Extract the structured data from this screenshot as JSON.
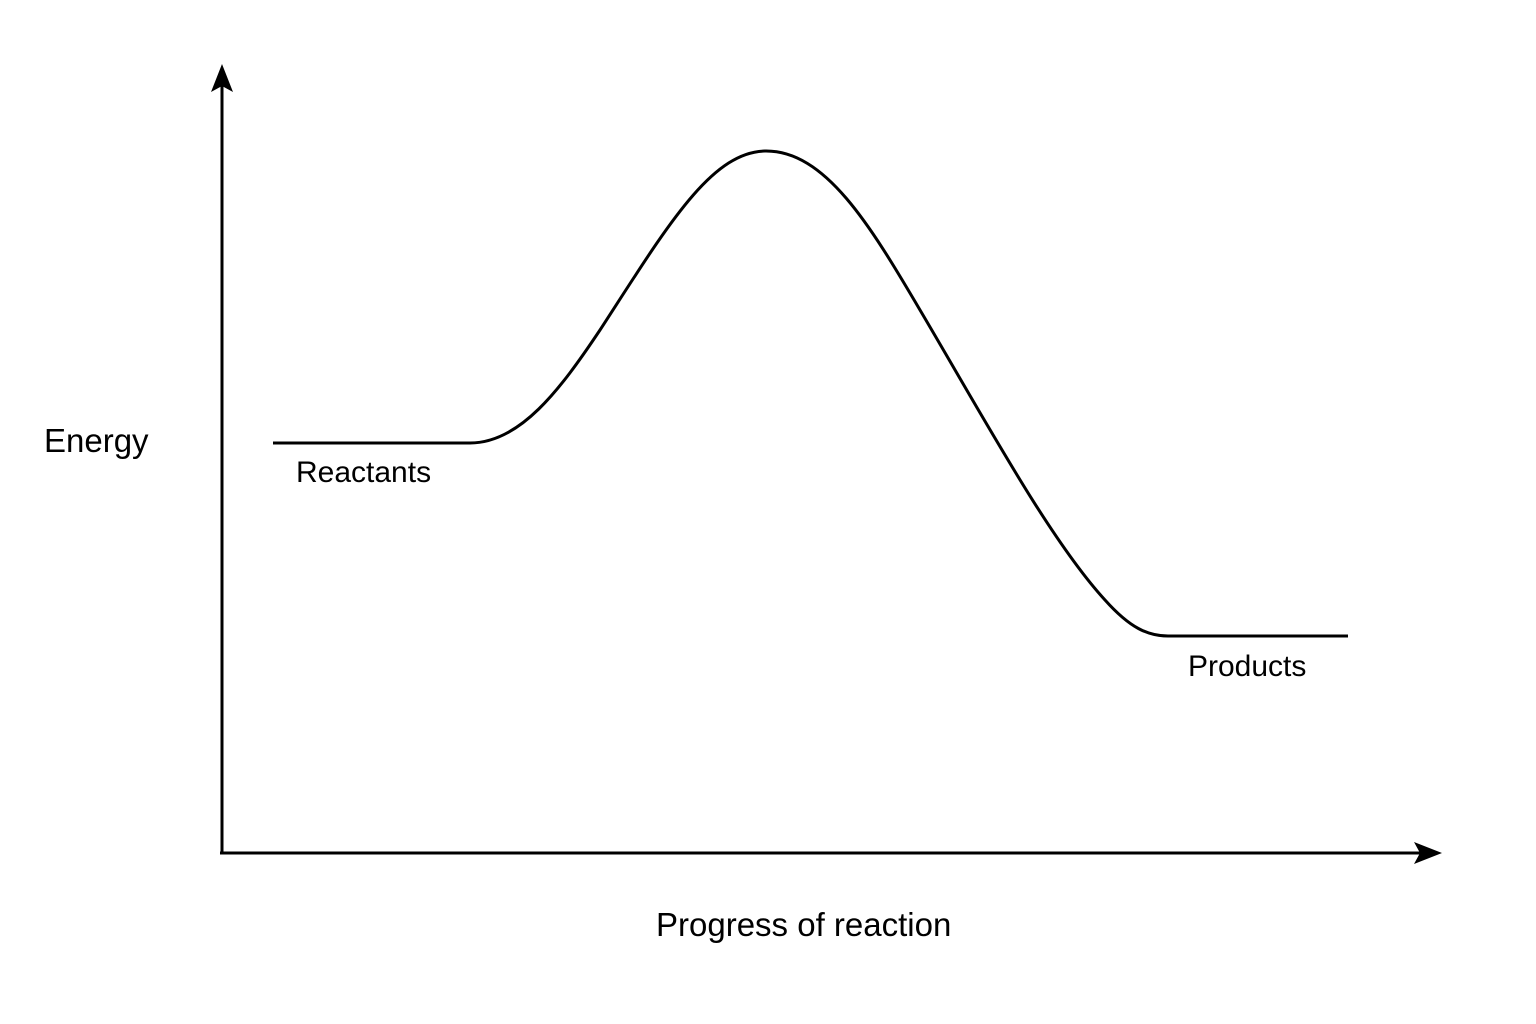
{
  "diagram": {
    "type": "energy-profile",
    "y_axis_label": "Energy",
    "x_axis_label": "Progress of reaction",
    "reactants_label": "Reactants",
    "products_label": "Products"
  },
  "colors": {
    "line": "#000000",
    "background": "#ffffff"
  }
}
